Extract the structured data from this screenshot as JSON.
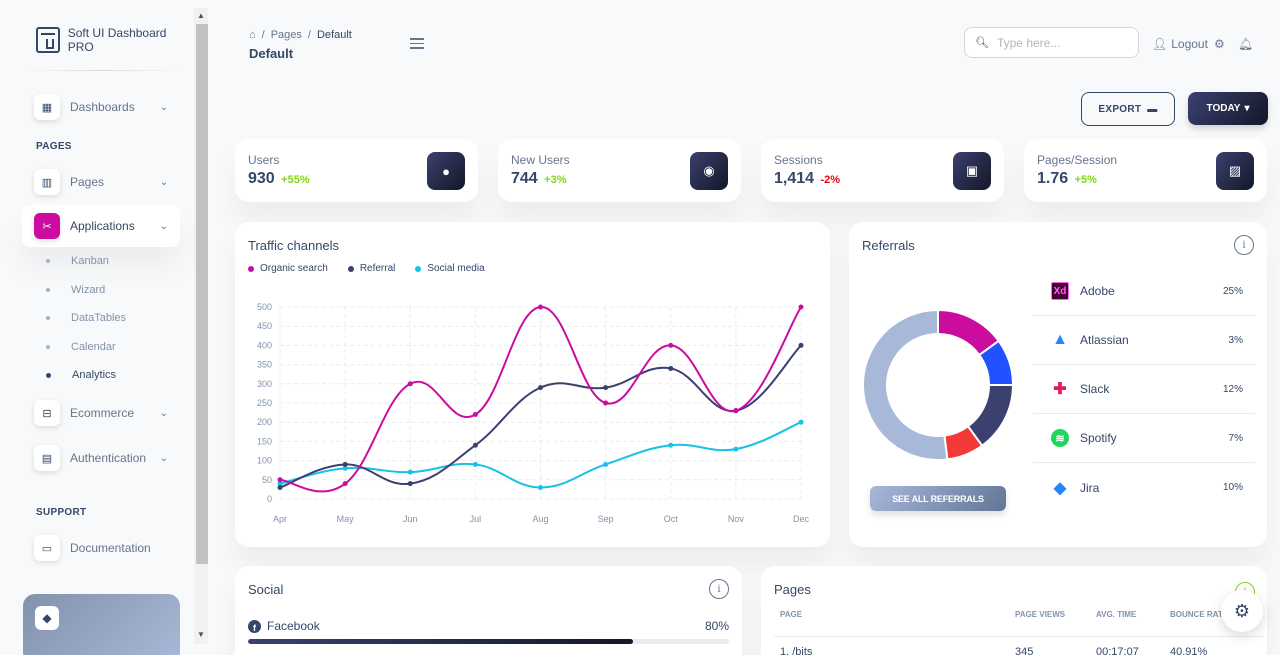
{
  "sidebar": {
    "brand": "Soft UI Dashboard PRO",
    "sections": {
      "pages": "PAGES",
      "support": "SUPPORT"
    },
    "items": {
      "dashboards": "Dashboards",
      "pages": "Pages",
      "applications": "Applications",
      "ecommerce": "Ecommerce",
      "authentication": "Authentication",
      "documentation": "Documentation"
    },
    "sub_items": [
      "Kanban",
      "Wizard",
      "DataTables",
      "Calendar",
      "Analytics"
    ]
  },
  "header": {
    "breadcrumb": {
      "home_icon": "home-icon",
      "section": "Pages",
      "current": "Default"
    },
    "title": "Default",
    "search_placeholder": "Type here...",
    "logout": "Logout",
    "export": "EXPORT",
    "today": "TODAY"
  },
  "stats": [
    {
      "label": "Users",
      "value": "930",
      "delta": "+55%",
      "trend": "up",
      "icon": "user-icon"
    },
    {
      "label": "New Users",
      "value": "744",
      "delta": "+3%",
      "trend": "up",
      "icon": "globe-icon"
    },
    {
      "label": "Sessions",
      "value": "1,414",
      "delta": "-2%",
      "trend": "down",
      "icon": "session-icon"
    },
    {
      "label": "Pages/Session",
      "value": "1.76",
      "delta": "+5%",
      "trend": "up",
      "icon": "image-icon"
    }
  ],
  "traffic": {
    "title": "Traffic channels",
    "chart_data": {
      "type": "line",
      "categories": [
        "Apr",
        "May",
        "Jun",
        "Jul",
        "Aug",
        "Sep",
        "Oct",
        "Nov",
        "Dec"
      ],
      "ylim": [
        0,
        500
      ],
      "yticks": [
        0,
        50,
        100,
        150,
        200,
        250,
        300,
        350,
        400,
        450,
        500
      ],
      "grid": true,
      "series": [
        {
          "name": "Organic search",
          "color": "#cb0c9f",
          "values": [
            50,
            40,
            300,
            220,
            500,
            250,
            400,
            230,
            500
          ]
        },
        {
          "name": "Referral",
          "color": "#3a416f",
          "values": [
            30,
            90,
            40,
            140,
            290,
            290,
            340,
            230,
            400
          ]
        },
        {
          "name": "Social media",
          "color": "#17c1e8",
          "values": [
            40,
            80,
            70,
            90,
            30,
            90,
            140,
            130,
            200
          ]
        }
      ]
    }
  },
  "referrals": {
    "title": "Referrals",
    "see_all": "SEE ALL REFERRALS",
    "chart_data": {
      "type": "pie",
      "categories": [
        "Adobe",
        "Atlassian",
        "Slack",
        "Spotify",
        "Jira"
      ],
      "values": [
        25,
        3,
        12,
        7,
        10
      ]
    },
    "donut_colors": [
      "#cb0c9f",
      "#2152ff",
      "#3a416f",
      "#f53939",
      "#a8b8d8"
    ],
    "donut_values": [
      15,
      10,
      15,
      8,
      52
    ],
    "items": [
      {
        "name": "Adobe",
        "pct": "25%",
        "logo": "Xd"
      },
      {
        "name": "Atlassian",
        "pct": "3%",
        "logo": "atlassian-icon"
      },
      {
        "name": "Slack",
        "pct": "12%",
        "logo": "slack-icon"
      },
      {
        "name": "Spotify",
        "pct": "7%",
        "logo": "spotify-icon"
      },
      {
        "name": "Jira",
        "pct": "10%",
        "logo": "jira-icon"
      }
    ]
  },
  "social": {
    "title": "Social",
    "items": [
      {
        "name": "Facebook",
        "pct": "80%",
        "value": 80
      }
    ]
  },
  "pages_table": {
    "title": "Pages",
    "headers": [
      "PAGE",
      "PAGE VIEWS",
      "AVG. TIME",
      "BOUNCE RATE"
    ],
    "rows": [
      [
        "1. /bits",
        "345",
        "00:17:07",
        "40.91%"
      ]
    ]
  }
}
